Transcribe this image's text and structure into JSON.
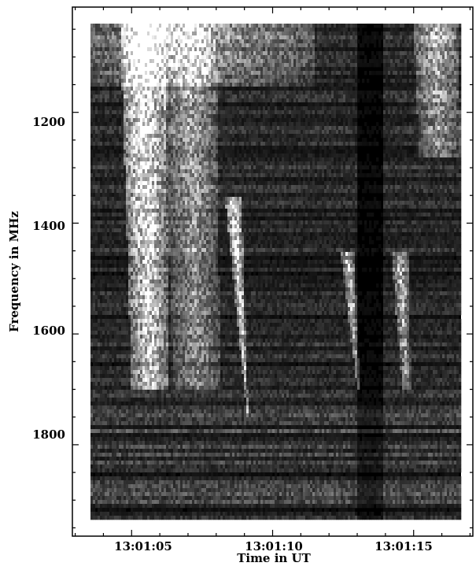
{
  "chart_data": {
    "type": "heatmap",
    "title": "",
    "xlabel": "Time in UT",
    "ylabel": "Frequency in MHz",
    "x_ticks": [
      "13:01:05",
      "13:01:10",
      "13:01:15"
    ],
    "x_tick_seconds": [
      5,
      10,
      15
    ],
    "x_range_seconds": [
      2.9,
      17.1
    ],
    "y_ticks": [
      1200,
      1400,
      1600,
      1800
    ],
    "y_range": [
      1010,
      1965
    ],
    "y_reversed": true,
    "colormap": "grayscale",
    "background_color": "#000000",
    "bursts": [
      {
        "t_start": 4.6,
        "t_end": 6.2,
        "f_top": 1040,
        "f_bottom": 1700,
        "intensity": 1.0,
        "drift": 0.4
      },
      {
        "t_start": 6.0,
        "t_end": 8.0,
        "f_top": 1040,
        "f_bottom": 1700,
        "intensity": 0.55,
        "drift": 0.5
      },
      {
        "t_start": 8.3,
        "t_end": 8.9,
        "f_top": 1350,
        "f_bottom": 1850,
        "intensity": 0.8,
        "drift": 1.0
      },
      {
        "t_start": 12.4,
        "t_end": 12.9,
        "f_top": 1450,
        "f_bottom": 1700,
        "intensity": 0.7,
        "drift": 0.6
      },
      {
        "t_start": 14.2,
        "t_end": 14.8,
        "f_top": 1450,
        "f_bottom": 1700,
        "intensity": 0.65,
        "drift": 0.4
      },
      {
        "t_start": 15.0,
        "t_end": 16.6,
        "f_top": 1040,
        "f_bottom": 1280,
        "intensity": 0.6,
        "drift": 0.2
      },
      {
        "t_start": 2.9,
        "t_end": 11.5,
        "f_top": 1040,
        "f_bottom": 1150,
        "intensity": 0.5,
        "drift": 0.0
      }
    ]
  }
}
